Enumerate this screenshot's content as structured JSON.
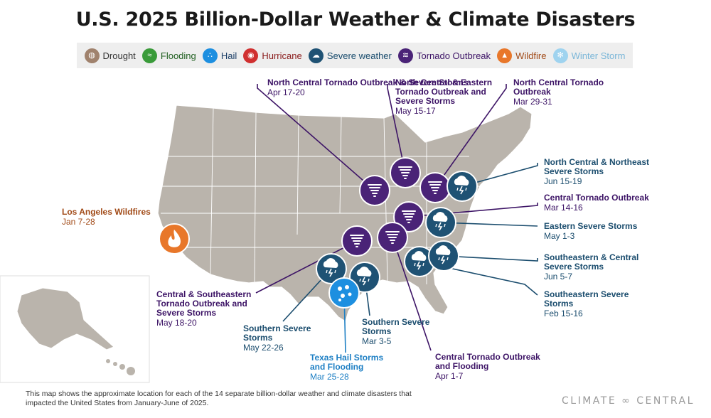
{
  "title": "U.S. 2025 Billion-Dollar Weather & Climate Disasters",
  "legend": [
    {
      "label": "Drought",
      "icon": "drought-icon",
      "color": "#a0826d",
      "text_color": "#333333",
      "glyph": "◍"
    },
    {
      "label": "Flooding",
      "icon": "flooding-icon",
      "color": "#3a9b3a",
      "text_color": "#1e5e1e",
      "glyph": "≈"
    },
    {
      "label": "Hail",
      "icon": "hail-icon",
      "color": "#1d8fe0",
      "text_color": "#1b3e66",
      "glyph": "∴"
    },
    {
      "label": "Hurricane",
      "icon": "hurricane-icon",
      "color": "#d03030",
      "text_color": "#8a1c1c",
      "glyph": "◉"
    },
    {
      "label": "Severe weather",
      "icon": "severe-weather-icon",
      "color": "#1f5274",
      "text_color": "#1b4d6e",
      "glyph": "☁"
    },
    {
      "label": "Tornado Outbreak",
      "icon": "tornado-icon",
      "color": "#4a2377",
      "text_color": "#3d1466",
      "glyph": "≋"
    },
    {
      "label": "Wildfire",
      "icon": "wildfire-icon",
      "color": "#e8772a",
      "text_color": "#a14a17",
      "glyph": "▲"
    },
    {
      "label": "Winter Storm",
      "icon": "winter-storm-icon",
      "color": "#9fd3ef",
      "text_color": "#7ab6d8",
      "glyph": "✻"
    }
  ],
  "events": [
    {
      "name": "North Central Tornado Outbreak & Severe Storms",
      "date": "Apr 17-20",
      "type": "Tornado Outbreak"
    },
    {
      "name": "North Central & Eastern Tornado Outbreak and Severe Storms",
      "date": "May 15-17",
      "type": "Tornado Outbreak"
    },
    {
      "name": "North Central Tornado Outbreak",
      "date": "Mar 29-31",
      "type": "Tornado Outbreak"
    },
    {
      "name": "North Central & Northeast Severe Storms",
      "date": "Jun 15-19",
      "type": "Severe weather"
    },
    {
      "name": "Central Tornado Outbreak",
      "date": "Mar 14-16",
      "type": "Tornado Outbreak"
    },
    {
      "name": "Eastern Severe Storms",
      "date": "May 1-3",
      "type": "Severe weather"
    },
    {
      "name": "Southeastern & Central Severe Storms",
      "date": "Jun 5-7",
      "type": "Severe weather"
    },
    {
      "name": "Southeastern Severe Storms",
      "date": "Feb 15-16",
      "type": "Severe weather"
    },
    {
      "name": "Central Tornado Outbreak and Flooding",
      "date": "Apr 1-7",
      "type": "Tornado Outbreak"
    },
    {
      "name": "Southern Severe Storms",
      "date": "Mar 3-5",
      "type": "Severe weather"
    },
    {
      "name": "Texas Hail Storms and Flooding",
      "date": "Mar 25-28",
      "type": "Hail"
    },
    {
      "name": "Southern Severe Storms",
      "date": "May 22-26",
      "type": "Severe weather"
    },
    {
      "name": "Central & Southeastern Tornado Outbreak and Severe Storms",
      "date": "May 18-20",
      "type": "Tornado Outbreak"
    },
    {
      "name": "Los Angeles Wildfires",
      "date": "Jan 7-28",
      "type": "Wildfire"
    }
  ],
  "footnote": "This map shows the approximate location for each of the 14 separate billion-dollar weather and climate disasters that impacted the United States from January-June of 2025.",
  "logo": "CLIMATE ∞ CENTRAL"
}
